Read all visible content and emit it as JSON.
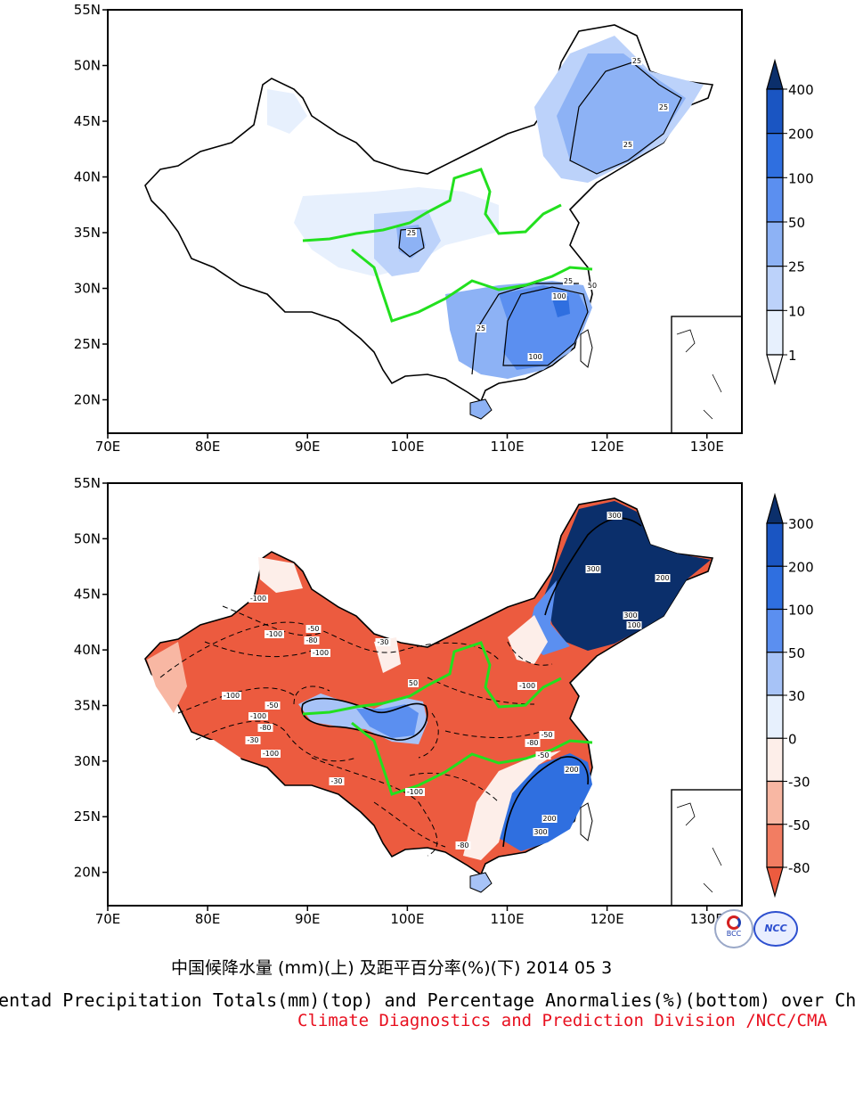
{
  "maps": [
    {
      "id": "precip_totals",
      "lat_labels": [
        "55N",
        "50N",
        "45N",
        "40N",
        "35N",
        "30N",
        "25N",
        "20N"
      ],
      "lon_labels": [
        "70E",
        "80E",
        "90E",
        "100E",
        "110E",
        "120E",
        "130E"
      ],
      "colorbar": {
        "labels": [
          "400",
          "200",
          "100",
          "50",
          "25",
          "10",
          "1"
        ],
        "colors": [
          "#0b2f6b",
          "#1a55c2",
          "#2f6fe0",
          "#5b8ff0",
          "#8db2f5",
          "#bcd2fa",
          "#e7f0fd",
          "#ffffff"
        ]
      },
      "contour_labels": [
        "25",
        "25",
        "25",
        "25",
        "25",
        "100",
        "100",
        "25",
        "50"
      ]
    },
    {
      "id": "percent_anomaly",
      "lat_labels": [
        "55N",
        "50N",
        "45N",
        "40N",
        "35N",
        "30N",
        "25N",
        "20N"
      ],
      "lon_labels": [
        "70E",
        "80E",
        "90E",
        "100E",
        "110E",
        "120E",
        "130E"
      ],
      "colorbar": {
        "labels": [
          "300",
          "200",
          "100",
          "50",
          "30",
          "0",
          "-30",
          "-50",
          "-80"
        ],
        "colors": [
          "#0b2f6b",
          "#1a55c2",
          "#2f6fe0",
          "#5b8ff0",
          "#a7c3f7",
          "#e7f0fd",
          "#fdeee9",
          "#f8b7a3",
          "#f27d62",
          "#ec5b3f"
        ]
      },
      "contour_labels": [
        "-100",
        "-100",
        "-100",
        "-80",
        "-50",
        "-30",
        "-100",
        "-100",
        "-80",
        "-50",
        "-30",
        "300",
        "300",
        "200",
        "100",
        "300",
        "200",
        "300",
        "200",
        "-100",
        "-80",
        "-50",
        "50",
        "-100",
        "-30",
        "-50",
        "-80",
        "-100"
      ]
    }
  ],
  "captions": {
    "chinese": "中国候降水量 (mm)(上) 及距平百分率(%)(下) 2014 05 3",
    "english": "Pentad Precipitation Totals(mm)(top) and Percentage Anormalies(%)(bottom) over China",
    "credit": "Climate Diagnostics and Prediction Division /NCC/CMA"
  },
  "logos": {
    "left": "BCC",
    "right": "NCC"
  }
}
